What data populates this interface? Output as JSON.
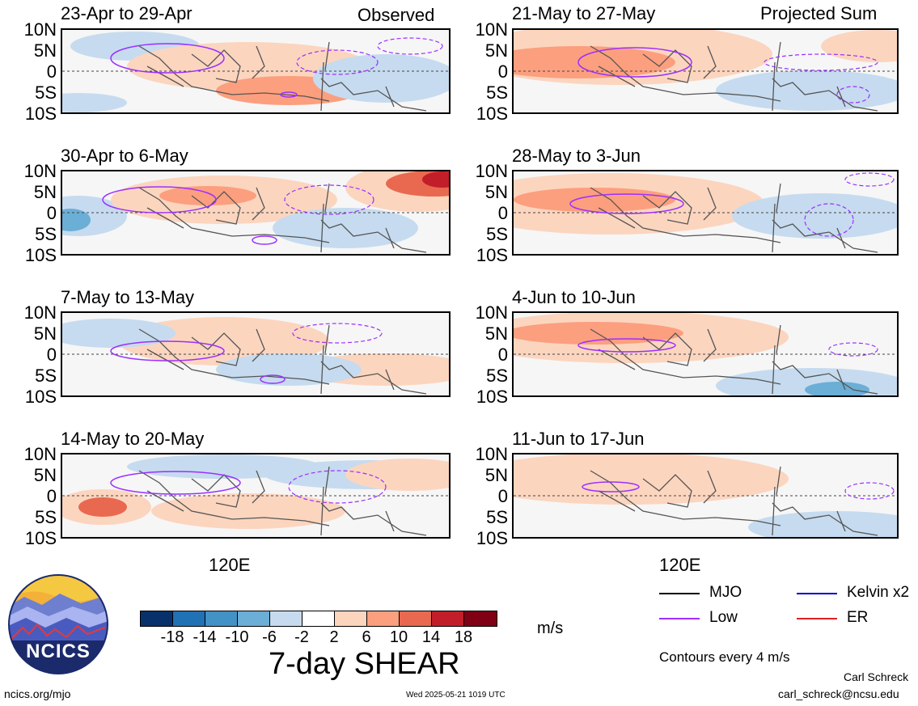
{
  "header": {
    "observed_label": "Observed",
    "projected_label": "Projected Sum"
  },
  "panels": [
    {
      "title": "23-Apr to 29-Apr"
    },
    {
      "title": "30-Apr to 6-May"
    },
    {
      "title": "7-May to 13-May"
    },
    {
      "title": "14-May to 20-May"
    },
    {
      "title": "21-May to 27-May"
    },
    {
      "title": "28-May to 3-Jun"
    },
    {
      "title": "4-Jun to 10-Jun"
    },
    {
      "title": "11-Jun to 17-Jun"
    }
  ],
  "axes": {
    "lat_labels": [
      "10N",
      "5N",
      "0",
      "5S",
      "10S"
    ],
    "lon_label": "120E"
  },
  "colorbar": {
    "colors": [
      "#08306b",
      "#2171b5",
      "#4292c6",
      "#6baed6",
      "#c6dbef",
      "#ffffff",
      "#fcd5bf",
      "#fc9f7e",
      "#e8694f",
      "#c21e2a",
      "#800014"
    ],
    "ticks": [
      "-18",
      "-14",
      "-10",
      "-6",
      "-2",
      "2",
      "6",
      "10",
      "14",
      "18"
    ],
    "units": "m/s",
    "title": "7-day SHEAR"
  },
  "legend": {
    "items": [
      {
        "label": "MJO",
        "color": "#000000"
      },
      {
        "label": "Kelvin x2",
        "color": "#0000cc"
      },
      {
        "label": "Low",
        "color": "#9b30ff"
      },
      {
        "label": "ER",
        "color": "#dd2222"
      }
    ],
    "contour_note": "Contours every 4 m/s"
  },
  "logo": {
    "text": "NCICS"
  },
  "footer": {
    "left": "ncics.org/mjo",
    "center": "Wed 2025-05-21 1019 UTC",
    "author": "Carl Schreck",
    "email": "carl_schreck@ncsu.edu"
  }
}
